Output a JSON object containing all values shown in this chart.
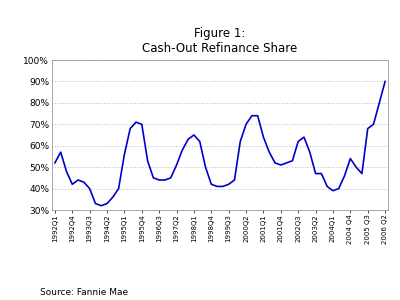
{
  "title_line1": "Figure 1:",
  "title_line2": "Cash-Out Refinance Share",
  "source": "Source: Fannie Mae",
  "line_color": "#0000CC",
  "line_width": 1.2,
  "grid_color": "#bbbbbb",
  "yticks": [
    0.3,
    0.4,
    0.5,
    0.6,
    0.7,
    0.8,
    0.9,
    1.0
  ],
  "ytick_labels": [
    "30%",
    "40%",
    "50%",
    "60%",
    "70%",
    "80%",
    "90%",
    "100%"
  ],
  "xtick_labels": [
    "1992Q1",
    "1992Q4",
    "1993Q3",
    "1994Q2",
    "1995Q1",
    "1995Q4",
    "1996Q3",
    "1997Q2",
    "1998Q1",
    "1998Q4",
    "1999Q3",
    "2000Q2",
    "2001Q1",
    "2001Q4",
    "2002Q3",
    "2003Q2",
    "2004Q1",
    "2004 Q4",
    "2005 Q3",
    "2006 Q2"
  ],
  "vals": [
    0.52,
    0.57,
    0.48,
    0.42,
    0.44,
    0.43,
    0.4,
    0.33,
    0.32,
    0.33,
    0.36,
    0.4,
    0.56,
    0.68,
    0.71,
    0.7,
    0.53,
    0.45,
    0.44,
    0.44,
    0.45,
    0.51,
    0.58,
    0.63,
    0.65,
    0.62,
    0.5,
    0.42,
    0.41,
    0.41,
    0.42,
    0.44,
    0.62,
    0.7,
    0.74,
    0.74,
    0.64,
    0.57,
    0.52,
    0.51,
    0.52,
    0.53,
    0.62,
    0.64,
    0.57,
    0.47,
    0.47,
    0.41,
    0.39,
    0.4,
    0.46,
    0.54,
    0.5,
    0.47,
    0.68,
    0.7,
    0.8,
    0.9
  ]
}
